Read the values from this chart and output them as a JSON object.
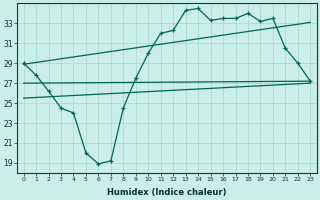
{
  "xlabel": "Humidex (Indice chaleur)",
  "bg_color": "#cceee8",
  "grid_color": "#aaddcc",
  "line_color": "#006655",
  "xlim": [
    -0.5,
    23.5
  ],
  "ylim": [
    18.0,
    35.0
  ],
  "yticks": [
    19,
    21,
    23,
    25,
    27,
    29,
    31,
    33
  ],
  "xticks": [
    0,
    1,
    2,
    3,
    4,
    5,
    6,
    7,
    8,
    9,
    10,
    11,
    12,
    13,
    14,
    15,
    16,
    17,
    18,
    19,
    20,
    21,
    22,
    23
  ],
  "line1_x": [
    0,
    1,
    2,
    3,
    4,
    5,
    6,
    7,
    8,
    9,
    10,
    11,
    12,
    13,
    14,
    15,
    16,
    17,
    18,
    19,
    20,
    21,
    22,
    23
  ],
  "line1_y": [
    29,
    27.8,
    26.2,
    24.5,
    24.0,
    20.0,
    18.9,
    19.2,
    24.5,
    27.5,
    30.0,
    32.0,
    32.3,
    34.3,
    34.5,
    33.3,
    33.5,
    33.5,
    34.0,
    33.2,
    33.5,
    30.5,
    29.0,
    27.2
  ],
  "line2_x": [
    0,
    23
  ],
  "line2_y": [
    28.9,
    33.1
  ],
  "line3_x": [
    0,
    23
  ],
  "line3_y": [
    27.0,
    27.2
  ],
  "line4_x": [
    0,
    23
  ],
  "line4_y": [
    25.5,
    27.0
  ]
}
